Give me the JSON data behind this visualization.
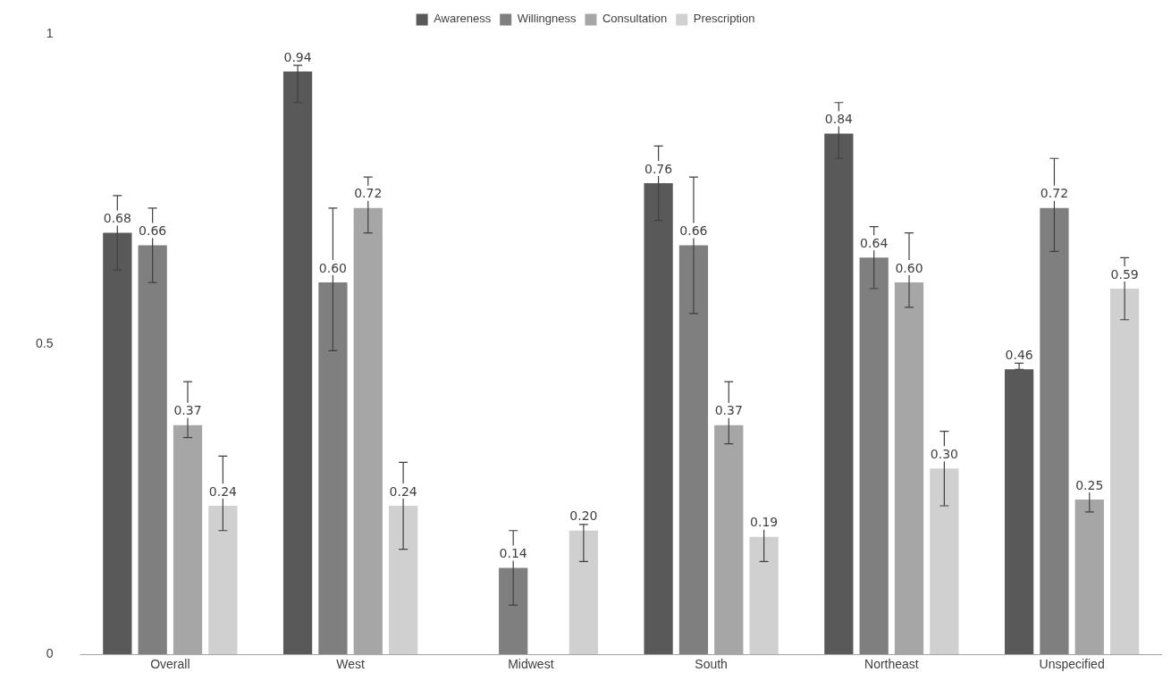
{
  "chart_data": {
    "type": "bar",
    "categories": [
      "Overall",
      "West",
      "Midwest",
      "South",
      "Northeast",
      "Unspecified"
    ],
    "series": [
      {
        "name": "Awareness",
        "color": "#595959",
        "values": [
          0.68,
          0.94,
          null,
          0.76,
          0.84,
          0.46
        ],
        "value_labels": [
          "0.68",
          "0.94",
          null,
          "0.76",
          "0.84",
          "0.46"
        ],
        "errors": [
          [
            0.62,
            0.74
          ],
          [
            0.89,
            0.95
          ],
          null,
          [
            0.7,
            0.82
          ],
          [
            0.8,
            0.89
          ],
          [
            0.46,
            0.47
          ]
        ]
      },
      {
        "name": "Willingness",
        "color": "#7f7f7f",
        "values": [
          0.66,
          0.6,
          0.14,
          0.66,
          0.64,
          0.72
        ],
        "value_labels": [
          "0.66",
          "0.60",
          "0.14",
          "0.66",
          "0.64",
          "0.72"
        ],
        "errors": [
          [
            0.6,
            0.72
          ],
          [
            0.49,
            0.72
          ],
          [
            0.08,
            0.2
          ],
          [
            0.55,
            0.77
          ],
          [
            0.59,
            0.69
          ],
          [
            0.65,
            0.8
          ]
        ]
      },
      {
        "name": "Consultation",
        "color": "#a6a6a6",
        "values": [
          0.37,
          0.72,
          null,
          0.37,
          0.6,
          0.25
        ],
        "value_labels": [
          "0.37",
          "0.72",
          null,
          "0.37",
          "0.60",
          "0.25"
        ],
        "errors": [
          [
            0.35,
            0.44
          ],
          [
            0.68,
            0.77
          ],
          null,
          [
            0.34,
            0.44
          ],
          [
            0.56,
            0.68
          ],
          [
            0.23,
            0.27
          ]
        ]
      },
      {
        "name": "Prescription",
        "color": "#d0d0d0",
        "values": [
          0.24,
          0.24,
          0.2,
          0.19,
          0.3,
          0.59
        ],
        "value_labels": [
          "0.24",
          "0.24",
          "0.20",
          "0.19",
          "0.30",
          "0.59"
        ],
        "errors": [
          [
            0.2,
            0.32
          ],
          [
            0.17,
            0.31
          ],
          [
            0.15,
            0.21
          ],
          [
            0.15,
            0.22
          ],
          [
            0.24,
            0.36
          ],
          [
            0.54,
            0.64
          ]
        ]
      }
    ],
    "ylim": [
      0,
      1
    ],
    "yticks": [
      0,
      0.5,
      1
    ],
    "grid": false,
    "legend": "top"
  }
}
